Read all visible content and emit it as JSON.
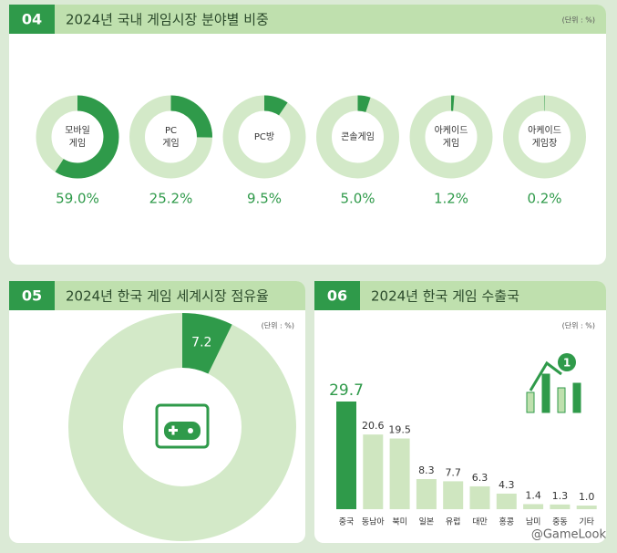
{
  "chart_data": [
    {
      "type": "donut",
      "number": "04",
      "title": "2024년 국내 게임시장 분야별 비중",
      "unit": "(단위 : %)",
      "categories": [
        [
          "모바일",
          "게임"
        ],
        [
          "PC",
          "게임"
        ],
        [
          "PC방"
        ],
        [
          "콘솔게임"
        ],
        [
          "아케이드",
          "게임"
        ],
        [
          "아케이드",
          "게임장"
        ]
      ],
      "values": [
        59.0,
        25.2,
        9.5,
        5.0,
        1.2,
        0.2
      ],
      "value_labels": [
        "59.0%",
        "25.2%",
        "9.5%",
        "5.0%",
        "1.2%",
        "0.2%"
      ],
      "color": "#2f9a4a",
      "track_color": "#d3e9c8"
    },
    {
      "type": "donut",
      "number": "05",
      "title": "2024년 한국 게임 세계시장 점유율",
      "unit": "(단위 : %)",
      "values": [
        7.2
      ],
      "value_labels": [
        "7.2"
      ],
      "color": "#2f9a4a",
      "track_color": "#d3e9c8"
    },
    {
      "type": "bar",
      "number": "06",
      "title": "2024년 한국 게임 수출국",
      "unit": "(단위 : %)",
      "categories": [
        "중국",
        "동남아",
        "북미",
        "일본",
        "유럽",
        "대만",
        "홍콩",
        "남미",
        "중동",
        "기타"
      ],
      "values": [
        29.7,
        20.6,
        19.5,
        8.3,
        7.7,
        6.3,
        4.3,
        1.4,
        1.3,
        1.0
      ],
      "value_labels": [
        "29.7",
        "20.6",
        "19.5",
        "8.3",
        "7.7",
        "6.3",
        "4.3",
        "1.4",
        "1.3",
        "1.0"
      ],
      "colors": [
        "#2f9a4a",
        "#cfe6c0"
      ],
      "icon_badge": "1",
      "watermark": "@GameLook"
    }
  ]
}
